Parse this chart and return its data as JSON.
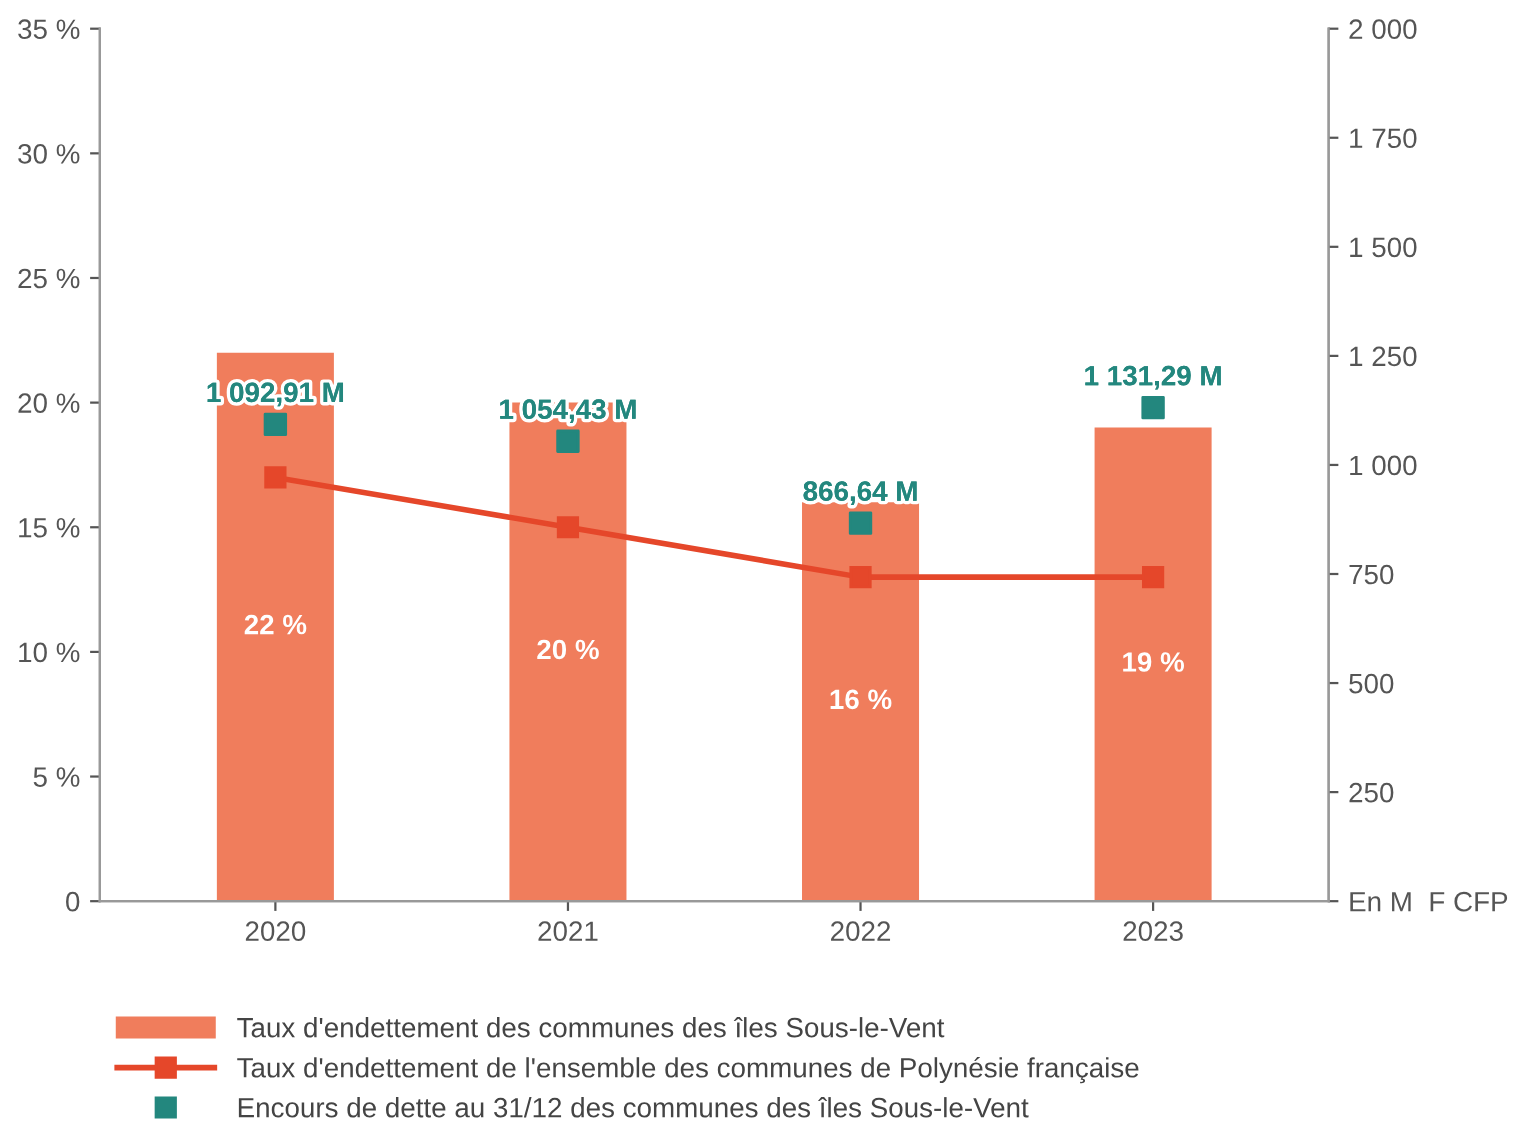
{
  "chart_data": {
    "type": "bar",
    "categories": [
      "2020",
      "2021",
      "2022",
      "2023"
    ],
    "series": [
      {
        "name": "Taux d'endettement des communes des îles Sous-le-Vent",
        "color": "#f07d5c",
        "values": [
          22,
          20,
          16,
          19
        ],
        "value_labels": [
          "22 %",
          "20 %",
          "16 %",
          "19 %"
        ]
      },
      {
        "name": "Taux d'endettement de l'ensemble des communes de Polynésie française",
        "type": "line",
        "color": "#e5472a",
        "marker": "square",
        "values": [
          17,
          15,
          13,
          13
        ]
      },
      {
        "name": "Encours de dette au 31/12 des communes des îles Sous-le-Vent",
        "type": "scatter",
        "axis": "y2",
        "color": "#23877e",
        "marker": "square",
        "values": [
          1092.91,
          1054.43,
          866.64,
          1131.29
        ],
        "value_labels": [
          "1 092,91 M",
          "1 054,43 M",
          "866,64 M",
          "1 131,29 M"
        ]
      }
    ],
    "ylim": [
      0,
      35
    ],
    "yticks": [
      0,
      {
        "value": 5,
        "label": "5 %"
      },
      {
        "value": 10,
        "label": "10 %"
      },
      {
        "value": 15,
        "label": "15 %"
      },
      {
        "value": 20,
        "label": "20 %"
      },
      {
        "value": 25,
        "label": "25 %"
      },
      {
        "value": 30,
        "label": "30 %"
      },
      {
        "value": 35,
        "label": "35 %"
      }
    ],
    "y2lim": [
      0,
      2000
    ],
    "y2ticks": [
      {
        "value": 0,
        "label": "En M  F CFP"
      },
      250,
      500,
      750,
      {
        "value": 1000,
        "label": "1 000"
      },
      {
        "value": 1250,
        "label": "1 250"
      },
      {
        "value": 1500,
        "label": "1 500"
      },
      {
        "value": 1750,
        "label": "1 750"
      },
      {
        "value": 2000,
        "label": "2 000"
      }
    ],
    "grid": false,
    "legend": "bottom"
  }
}
